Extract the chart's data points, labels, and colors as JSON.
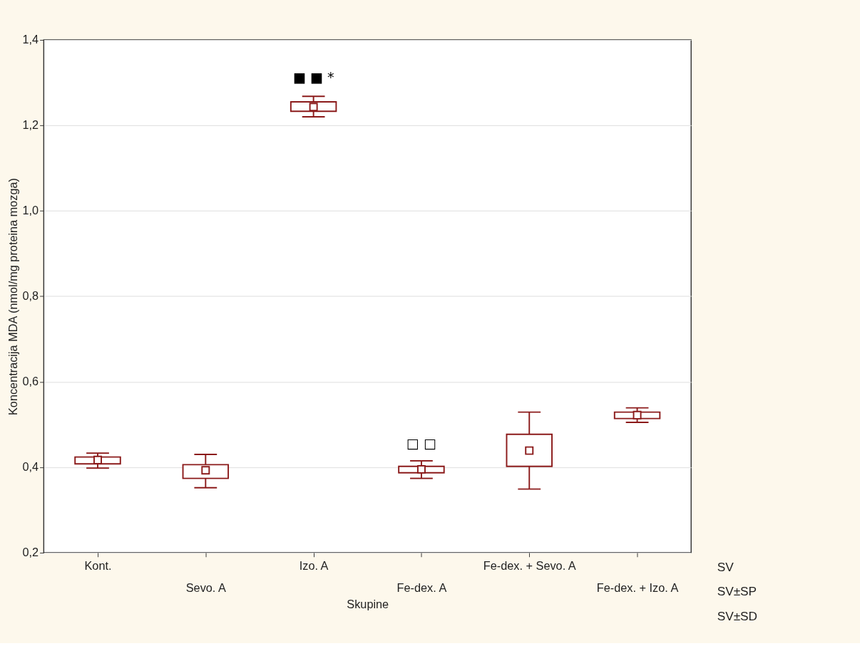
{
  "chart_data": {
    "type": "box",
    "xlabel": "Skupine",
    "ylabel": "Koncentracija MDA (nmol/mg proteina mozga)",
    "categories": [
      "Kont.",
      "Sevo. A",
      "Izo. A",
      "Fe-dex. A",
      "Fe-dex. + Sevo. A",
      "Fe-dex. + Izo. A"
    ],
    "series": [
      {
        "color": "#8b1a1a",
        "boxes": [
          {
            "low": 0.398,
            "q1": 0.408,
            "median": 0.417,
            "q3": 0.424,
            "high": 0.433
          },
          {
            "low": 0.352,
            "q1": 0.374,
            "median": 0.393,
            "q3": 0.406,
            "high": 0.43
          },
          {
            "low": 1.22,
            "q1": 1.233,
            "median": 1.243,
            "q3": 1.255,
            "high": 1.268
          },
          {
            "low": 0.374,
            "q1": 0.387,
            "median": 0.395,
            "q3": 0.402,
            "high": 0.415
          },
          {
            "low": 0.349,
            "q1": 0.402,
            "median": 0.439,
            "q3": 0.477,
            "high": 0.529
          },
          {
            "low": 0.505,
            "q1": 0.514,
            "median": 0.522,
            "q3": 0.529,
            "high": 0.539
          }
        ]
      }
    ],
    "ylim": [
      0.2,
      1.4
    ],
    "yticks": [
      {
        "value": 0.2,
        "label": "0,2"
      },
      {
        "value": 0.4,
        "label": "0,4"
      },
      {
        "value": 0.6,
        "label": "0,6"
      },
      {
        "value": 0.8,
        "label": "0,8"
      },
      {
        "value": 1.0,
        "label": "1,0"
      },
      {
        "value": 1.2,
        "label": "1,2"
      },
      {
        "value": 1.4,
        "label": "1,4"
      }
    ],
    "grid": "y",
    "annotations": [
      "■ ■ *",
      "□ □",
      "SV",
      "SV±SP",
      "SV±SD"
    ]
  }
}
